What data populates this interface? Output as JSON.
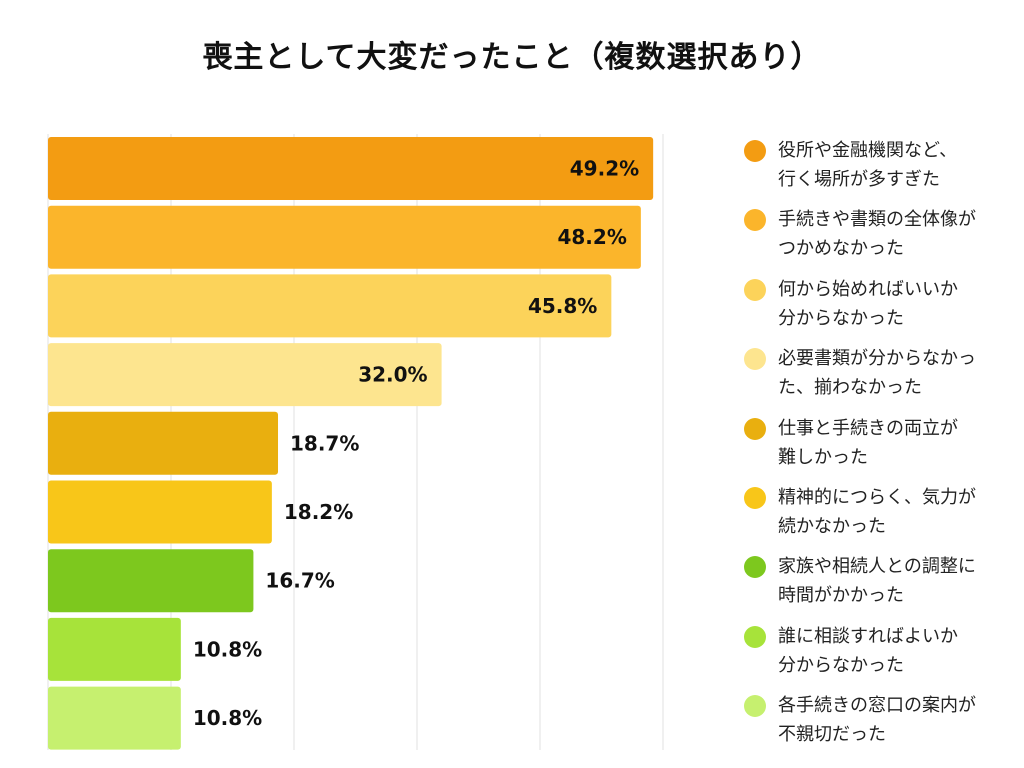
{
  "chart_data": {
    "type": "bar",
    "orientation": "horizontal",
    "title": "喪主として大変だったこと（複数選択あり）",
    "xlim": [
      0,
      50
    ],
    "grid": true,
    "legend_position": "right",
    "categories": [
      "役所や金融機関など、\n行く場所が多すぎた",
      "手続きや書類の全体像が\nつかめなかった",
      "何から始めればいいか\n分からなかった",
      "必要書類が分からなかっ\nた、揃わなかった",
      "仕事と手続きの両立が\n難しかった",
      "精神的につらく、気力が\n続かなかった",
      "家族や相続人との調整に\n時間がかかった",
      "誰に相談すればよいか\n分からなかった",
      "各手続きの窓口の案内が\n不親切だった"
    ],
    "values": [
      49.2,
      48.2,
      45.8,
      32.0,
      18.7,
      18.2,
      16.7,
      10.8,
      10.8
    ],
    "labels": [
      "49.2%",
      "48.2%",
      "45.8%",
      "32.0%",
      "18.7%",
      "18.2%",
      "16.7%",
      "10.8%",
      "10.8%"
    ],
    "colors": [
      "#F39C12",
      "#FBB52B",
      "#FCD35A",
      "#FDE58F",
      "#E9AF0F",
      "#F8C619",
      "#7DC81E",
      "#A7E33A",
      "#C6F06F"
    ]
  }
}
